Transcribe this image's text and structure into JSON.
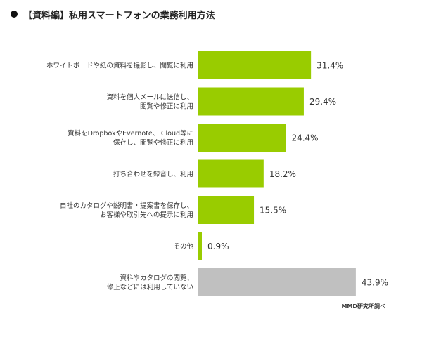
{
  "title": "【資料編】私用スマートフォンの業務利用方法",
  "source_note": "MMD研究所調べ",
  "colors": {
    "primary_bar": "#99cc00",
    "other_bar": "#c0c0c0",
    "text": "#333333"
  },
  "chart_data": {
    "type": "bar",
    "orientation": "horizontal",
    "unit": "%",
    "xlim": [
      0,
      50
    ],
    "grid": false,
    "legend": "none",
    "categories": [
      [
        "ホワイトボードや紙の資料を撮影し、閲覧に利用"
      ],
      [
        "資料を個人メールに送信し、",
        "閲覧や修正に利用"
      ],
      [
        "資料をDropboxやEvernote、iCloud等に",
        "保存し、閲覧や修正に利用"
      ],
      [
        "打ち合わせを録音し、利用"
      ],
      [
        "自社のカタログや説明書・提案書を保存し、",
        "お客様や取引先への提示に利用"
      ],
      [
        "その他"
      ],
      [
        "資料やカタログの閲覧、",
        "修正などには利用していない"
      ]
    ],
    "values": [
      31.4,
      29.4,
      24.4,
      18.2,
      15.5,
      0.9,
      43.9
    ],
    "value_labels": [
      "31.4%",
      "29.4%",
      "24.4%",
      "18.2%",
      "15.5%",
      "0.9%",
      "43.9%"
    ],
    "bar_colors": [
      "#99cc00",
      "#99cc00",
      "#99cc00",
      "#99cc00",
      "#99cc00",
      "#99cc00",
      "#c0c0c0"
    ]
  }
}
